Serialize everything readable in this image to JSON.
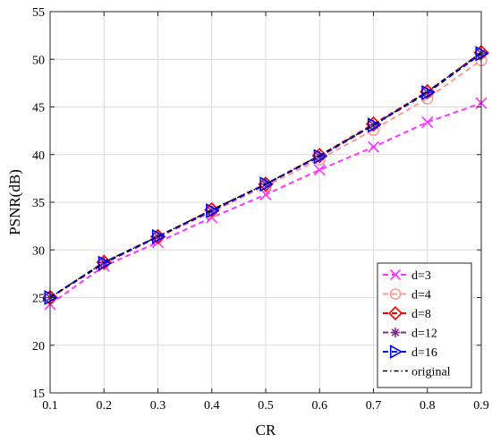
{
  "chart_data": {
    "type": "line",
    "title": "",
    "xlabel": "CR",
    "ylabel": "PSNR(dB)",
    "xlim": [
      0.1,
      0.9
    ],
    "ylim": [
      15,
      55
    ],
    "x_ticks": [
      0.1,
      0.2,
      0.3,
      0.4,
      0.5,
      0.6,
      0.7,
      0.8,
      0.9
    ],
    "y_ticks": [
      15,
      20,
      25,
      30,
      35,
      40,
      45,
      50,
      55
    ],
    "grid": true,
    "legend_position": "bottom-right",
    "x": [
      0.1,
      0.2,
      0.3,
      0.4,
      0.5,
      0.6,
      0.7,
      0.8,
      0.9
    ],
    "series": [
      {
        "name": "d=3",
        "color": "#ff33ff",
        "dash": "dashed",
        "marker": "x",
        "values": [
          24.3,
          28.3,
          30.8,
          33.4,
          35.8,
          38.4,
          40.8,
          43.4,
          45.4
        ]
      },
      {
        "name": "d=4",
        "color": "#ff9999",
        "dash": "dashed",
        "marker": "circle",
        "values": [
          25.0,
          28.6,
          31.3,
          34.0,
          36.7,
          39.5,
          42.6,
          45.9,
          49.9
        ]
      },
      {
        "name": "d=8",
        "color": "#ff0000",
        "dash": "dashed",
        "marker": "diamond",
        "values": [
          25.0,
          28.7,
          31.4,
          34.2,
          36.9,
          39.9,
          43.2,
          46.6,
          50.7
        ]
      },
      {
        "name": "d=12",
        "color": "#7e2f8e",
        "dash": "dashed",
        "marker": "star",
        "values": [
          25.0,
          28.7,
          31.4,
          34.1,
          36.9,
          39.8,
          43.1,
          46.5,
          50.6
        ]
      },
      {
        "name": "d=16",
        "color": "#0000ff",
        "dash": "dashed",
        "marker": "triangle-right",
        "values": [
          25.0,
          28.6,
          31.4,
          34.1,
          36.9,
          39.8,
          43.1,
          46.5,
          50.6
        ]
      },
      {
        "name": "original",
        "color": "#000000",
        "dash": "dashdot",
        "marker": "none",
        "values": [
          25.0,
          28.7,
          31.4,
          34.2,
          36.9,
          39.9,
          43.1,
          46.6,
          50.7
        ]
      }
    ]
  }
}
